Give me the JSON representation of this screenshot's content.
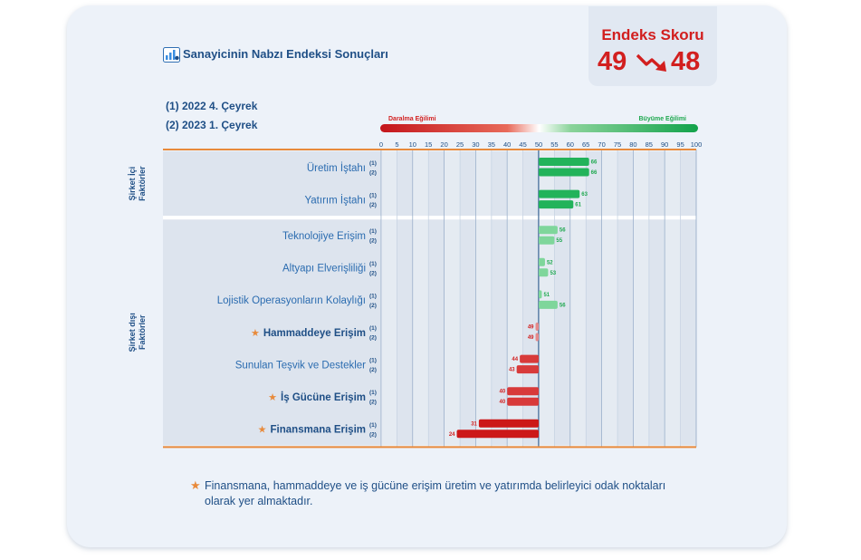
{
  "card": {
    "title": "Sanayicinin Nabzı Endeksi Sonuçları",
    "periods": [
      "(1) 2022 4. Çeyrek",
      "(2) 2023 1. Çeyrek"
    ],
    "footnote": "Finansmana, hammaddeye ve iş gücüne erişim üretim ve yatırımda belirleyici odak noktaları olarak yer almaktadır.",
    "title_icon": "chart-icon",
    "star_icon": "star-icon"
  },
  "score": {
    "title": "Endeks Skoru",
    "from": "49",
    "to": "48",
    "trend_icon": "trend-down-arrow-icon"
  },
  "colors": {
    "red": "#d21f1f",
    "green": "#1ea84f",
    "navy": "#1f4f86",
    "orange": "#e88a3b"
  },
  "chart_data": {
    "type": "bar",
    "orientation": "horizontal",
    "gradient_legend": {
      "left_label": "Daralma Eğilimi",
      "right_label": "Büyüme Eğilimi"
    },
    "xlim": [
      0,
      100
    ],
    "xticks": [
      0,
      5,
      10,
      15,
      20,
      25,
      30,
      35,
      40,
      45,
      50,
      55,
      60,
      65,
      70,
      75,
      80,
      85,
      90,
      95,
      100
    ],
    "threshold": 50,
    "series": [
      {
        "name": "(1)"
      },
      {
        "name": "(2)"
      }
    ],
    "groups": [
      {
        "name": "Şirket İçi Faktörler",
        "categories": [
          {
            "label": "Üretim İştahı",
            "star": false,
            "values": [
              66,
              66
            ]
          },
          {
            "label": "Yatırım İştahı",
            "star": false,
            "values": [
              63,
              61
            ]
          }
        ]
      },
      {
        "name": "Şirket dışı Faktörler",
        "categories": [
          {
            "label": "Teknolojiye Erişim",
            "star": false,
            "values": [
              56,
              55
            ]
          },
          {
            "label": "Altyapı Elverişliliği",
            "star": false,
            "values": [
              52,
              53
            ]
          },
          {
            "label": "Lojistik Operasyonların Kolaylığı",
            "star": false,
            "values": [
              51,
              56
            ]
          },
          {
            "label": "Hammaddeye Erişim",
            "star": true,
            "values": [
              49,
              49
            ]
          },
          {
            "label": "Sunulan Teşvik ve Destekler",
            "star": false,
            "values": [
              44,
              43
            ]
          },
          {
            "label": "İş Gücüne Erişim",
            "star": true,
            "values": [
              40,
              40
            ]
          },
          {
            "label": "Finansmana Erişim",
            "star": true,
            "values": [
              31,
              24
            ]
          }
        ]
      }
    ]
  }
}
